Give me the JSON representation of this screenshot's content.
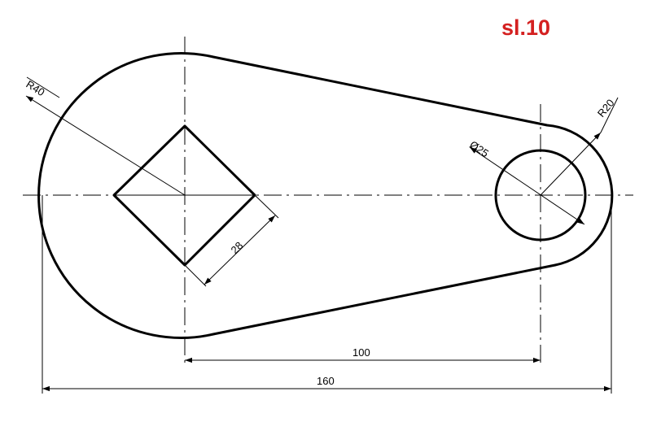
{
  "sheet_label": "sl.10",
  "colors": {
    "label": "#d42020",
    "line": "#000000",
    "background": "#ffffff"
  },
  "dimensions": {
    "big_radius": "R40",
    "small_radius": "R20",
    "hole_diameter": "Ø25",
    "square_side": "28",
    "center_distance": "100",
    "overall_length": "160"
  }
}
